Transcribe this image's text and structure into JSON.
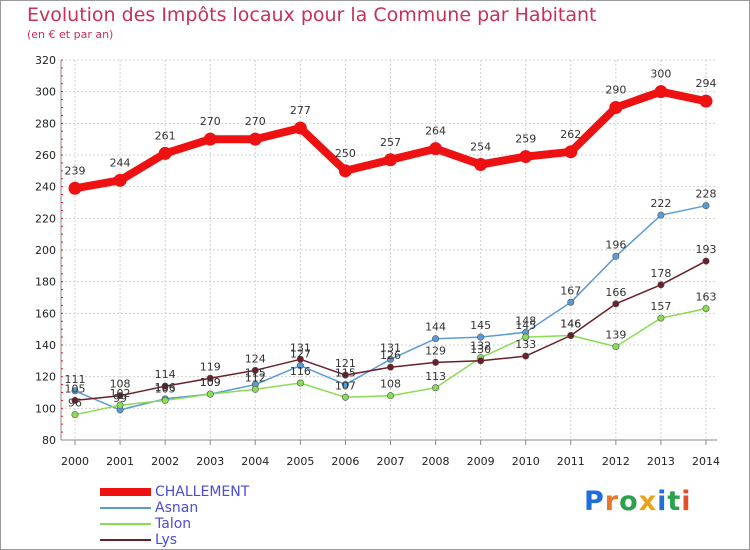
{
  "chart_data": {
    "type": "line",
    "title": "Evolution des Impôts locaux pour la Commune par Habitant",
    "subtitle": "(en € et par an)",
    "categories": [
      "2000",
      "2001",
      "2002",
      "2003",
      "2004",
      "2005",
      "2006",
      "2007",
      "2008",
      "2009",
      "2010",
      "2011",
      "2012",
      "2013",
      "2014"
    ],
    "ylim": [
      80,
      320
    ],
    "yticks": [
      80,
      100,
      120,
      140,
      160,
      180,
      200,
      220,
      240,
      260,
      280,
      300,
      320
    ],
    "grid": true,
    "legend_position": "bottom-left",
    "series": [
      {
        "name": "CHALLEMENT",
        "color": "#ee1111",
        "values": [
          239,
          244,
          261,
          270,
          270,
          277,
          250,
          257,
          264,
          254,
          259,
          262,
          290,
          300,
          294
        ],
        "show_labels": true
      },
      {
        "name": "Asnan",
        "color": "#5b9bd5",
        "values": [
          111,
          99,
          106,
          109,
          115,
          127,
          115,
          131,
          144,
          145,
          148,
          167,
          196,
          222,
          228
        ],
        "show_labels": true
      },
      {
        "name": "Talon",
        "color": "#88dd55",
        "values": [
          96,
          102,
          105,
          109,
          112,
          116,
          107,
          108,
          113,
          132,
          145,
          146,
          139,
          157,
          163
        ],
        "show_labels": true
      },
      {
        "name": "Lys",
        "color": "#6b1f2a",
        "values": [
          105,
          108,
          114,
          119,
          124,
          131,
          121,
          126,
          129,
          130,
          133,
          146,
          166,
          178,
          193
        ],
        "show_labels": true
      }
    ]
  },
  "logo": {
    "text": "Proxiti",
    "letters": [
      "P",
      "r",
      "o",
      "x",
      "i",
      "t",
      "i"
    ],
    "colors": [
      "#1e6fd9",
      "#e8762b",
      "#2aa14a",
      "#e8a51c",
      "#1e6fd9",
      "#2aa14a",
      "#e24d2a"
    ]
  }
}
